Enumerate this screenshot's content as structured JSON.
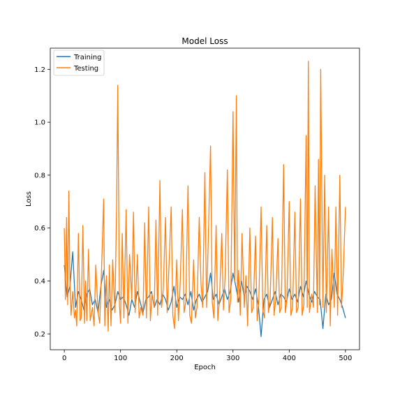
{
  "chart_data": {
    "type": "line",
    "title": "Model Loss",
    "xlabel": "Epoch",
    "ylabel": "Loss",
    "xlim": [
      -25,
      525
    ],
    "ylim": [
      0.14,
      1.28
    ],
    "xticks": [
      0,
      100,
      200,
      300,
      400,
      500
    ],
    "yticks": [
      0.2,
      0.4,
      0.6,
      0.8,
      1.0,
      1.2
    ],
    "ytick_labels": [
      "0.2",
      "0.4",
      "0.6",
      "0.8",
      "1.0",
      "1.2"
    ],
    "grid": false,
    "legend_position": "upper-left",
    "series": [
      {
        "name": "Training",
        "color": "#1f77b4",
        "x": [
          0,
          5,
          10,
          15,
          20,
          25,
          30,
          35,
          40,
          45,
          50,
          55,
          60,
          65,
          70,
          75,
          80,
          85,
          90,
          95,
          100,
          105,
          110,
          115,
          120,
          125,
          130,
          135,
          140,
          145,
          150,
          155,
          160,
          165,
          170,
          175,
          180,
          185,
          190,
          195,
          200,
          205,
          210,
          215,
          220,
          225,
          230,
          235,
          240,
          245,
          250,
          255,
          260,
          265,
          270,
          275,
          280,
          285,
          290,
          295,
          300,
          305,
          310,
          315,
          320,
          325,
          330,
          335,
          340,
          345,
          350,
          355,
          360,
          365,
          370,
          375,
          380,
          385,
          390,
          395,
          400,
          405,
          410,
          415,
          420,
          425,
          430,
          435,
          440,
          445,
          450,
          455,
          460,
          465,
          470,
          475,
          480,
          485,
          490,
          495,
          500
        ],
        "y": [
          0.46,
          0.34,
          0.38,
          0.51,
          0.3,
          0.36,
          0.33,
          0.29,
          0.35,
          0.37,
          0.31,
          0.33,
          0.28,
          0.38,
          0.44,
          0.3,
          0.33,
          0.29,
          0.31,
          0.36,
          0.33,
          0.34,
          0.31,
          0.27,
          0.33,
          0.3,
          0.36,
          0.32,
          0.28,
          0.33,
          0.34,
          0.36,
          0.3,
          0.33,
          0.31,
          0.35,
          0.33,
          0.29,
          0.32,
          0.38,
          0.3,
          0.34,
          0.33,
          0.35,
          0.31,
          0.36,
          0.29,
          0.33,
          0.35,
          0.32,
          0.34,
          0.36,
          0.43,
          0.33,
          0.35,
          0.31,
          0.34,
          0.37,
          0.33,
          0.36,
          0.43,
          0.38,
          0.32,
          0.4,
          0.34,
          0.38,
          0.36,
          0.33,
          0.37,
          0.31,
          0.19,
          0.33,
          0.35,
          0.3,
          0.33,
          0.36,
          0.31,
          0.35,
          0.34,
          0.32,
          0.37,
          0.33,
          0.35,
          0.32,
          0.38,
          0.34,
          0.4,
          0.35,
          0.32,
          0.36,
          0.34,
          0.33,
          0.22,
          0.35,
          0.31,
          0.33,
          0.43,
          0.35,
          0.33,
          0.3,
          0.26
        ]
      },
      {
        "name": "Testing",
        "color": "#ff7f0e",
        "x": [
          0,
          2,
          4,
          6,
          8,
          10,
          12,
          15,
          18,
          20,
          22,
          25,
          28,
          30,
          33,
          36,
          38,
          40,
          43,
          46,
          50,
          53,
          56,
          60,
          63,
          66,
          70,
          72,
          75,
          78,
          80,
          83,
          86,
          90,
          93,
          95,
          98,
          100,
          103,
          106,
          110,
          113,
          116,
          120,
          123,
          126,
          130,
          133,
          136,
          140,
          143,
          146,
          150,
          153,
          156,
          160,
          163,
          166,
          170,
          173,
          176,
          180,
          183,
          186,
          190,
          193,
          196,
          200,
          203,
          206,
          210,
          213,
          216,
          220,
          223,
          226,
          230,
          233,
          236,
          240,
          243,
          246,
          250,
          253,
          256,
          260,
          263,
          266,
          270,
          273,
          276,
          280,
          283,
          286,
          290,
          293,
          296,
          300,
          303,
          306,
          308,
          310,
          313,
          316,
          320,
          323,
          326,
          330,
          333,
          336,
          340,
          343,
          346,
          350,
          353,
          356,
          360,
          363,
          366,
          370,
          373,
          376,
          380,
          383,
          386,
          390,
          393,
          396,
          400,
          403,
          406,
          410,
          413,
          416,
          420,
          423,
          426,
          430,
          432,
          434,
          436,
          440,
          443,
          446,
          450,
          452,
          454,
          456,
          460,
          463,
          466,
          470,
          473,
          476,
          480,
          483,
          486,
          490,
          493,
          496,
          500
        ],
        "y": [
          0.6,
          0.33,
          0.64,
          0.31,
          0.74,
          0.4,
          0.27,
          0.36,
          0.26,
          0.29,
          0.23,
          0.58,
          0.25,
          0.26,
          0.61,
          0.24,
          0.4,
          0.25,
          0.52,
          0.25,
          0.3,
          0.23,
          0.46,
          0.28,
          0.24,
          0.43,
          0.71,
          0.23,
          0.42,
          0.21,
          0.46,
          0.23,
          0.48,
          0.28,
          0.68,
          1.14,
          0.31,
          0.24,
          0.58,
          0.26,
          0.67,
          0.24,
          0.5,
          0.33,
          0.66,
          0.28,
          0.5,
          0.26,
          0.3,
          0.27,
          0.62,
          0.26,
          0.68,
          0.25,
          0.35,
          0.3,
          0.63,
          0.27,
          0.78,
          0.3,
          0.37,
          0.64,
          0.28,
          0.45,
          0.68,
          0.27,
          0.22,
          0.48,
          0.25,
          0.39,
          0.67,
          0.28,
          0.32,
          0.76,
          0.27,
          0.24,
          0.48,
          0.26,
          0.3,
          0.64,
          0.39,
          0.3,
          0.81,
          0.3,
          0.55,
          0.91,
          0.32,
          0.26,
          0.61,
          0.25,
          0.33,
          0.58,
          0.29,
          0.42,
          0.82,
          0.28,
          0.33,
          1.04,
          0.4,
          1.1,
          0.32,
          0.44,
          0.27,
          0.58,
          0.3,
          0.42,
          0.23,
          0.6,
          0.28,
          0.3,
          0.57,
          0.25,
          0.33,
          0.68,
          0.29,
          0.26,
          0.61,
          0.28,
          0.32,
          0.64,
          0.27,
          0.33,
          0.56,
          0.28,
          0.3,
          0.84,
          0.28,
          0.33,
          0.7,
          0.27,
          0.3,
          0.66,
          0.28,
          0.3,
          0.71,
          0.27,
          0.31,
          0.95,
          0.3,
          1.23,
          0.28,
          0.35,
          0.3,
          0.76,
          0.28,
          0.86,
          0.31,
          1.2,
          0.3,
          0.8,
          0.28,
          0.68,
          0.23,
          0.52,
          0.3,
          0.68,
          0.27,
          0.8,
          0.3,
          0.42,
          0.68
        ]
      }
    ]
  }
}
